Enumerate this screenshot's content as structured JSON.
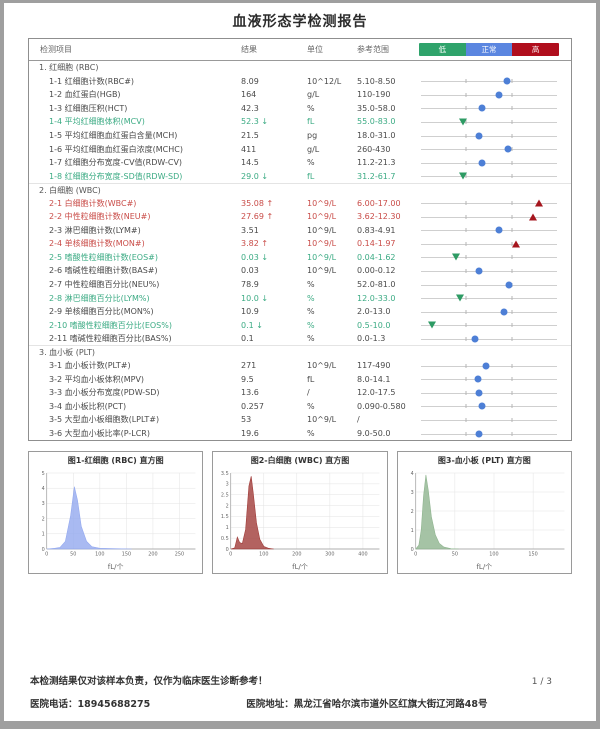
{
  "title": "血液形态学检测报告",
  "table": {
    "headers": {
      "item": "检测项目",
      "result": "结果",
      "unit": "单位",
      "ref": "参考范围"
    },
    "legend": [
      {
        "label": "低",
        "color": "#2fa36b"
      },
      {
        "label": "正常",
        "color": "#5b86e0"
      },
      {
        "label": "高",
        "color": "#b00e1d"
      }
    ],
    "sections": [
      {
        "name": "1. 红细胞 (RBC)",
        "rows": [
          {
            "label": "1-1 红细胞计数(RBC#)",
            "result": "8.09",
            "flag": "",
            "unit": "10^12/L",
            "ref": "5.10-8.50",
            "status": "normal",
            "pos": 63
          },
          {
            "label": "1-2 血红蛋白(HGB)",
            "result": "164",
            "flag": "",
            "unit": "g/L",
            "ref": "110-190",
            "status": "normal",
            "pos": 57
          },
          {
            "label": "1-3 红细胞压积(HCT)",
            "result": "42.3",
            "flag": "",
            "unit": "%",
            "ref": "35.0-58.0",
            "status": "normal",
            "pos": 45
          },
          {
            "label": "1-4 平均红细胞体积(MCV)",
            "result": "52.3",
            "flag": "↓",
            "unit": "fL",
            "ref": "55.0-83.0",
            "status": "low",
            "pos": 31
          },
          {
            "label": "1-5 平均红细胞血红蛋白含量(MCH)",
            "result": "21.5",
            "flag": "",
            "unit": "pg",
            "ref": "18.0-31.0",
            "status": "normal",
            "pos": 43
          },
          {
            "label": "1-6 平均红细胞血红蛋白浓度(MCHC)",
            "result": "411",
            "flag": "",
            "unit": "g/L",
            "ref": "260-430",
            "status": "normal",
            "pos": 64
          },
          {
            "label": "1-7 红细胞分布宽度-CV值(RDW-CV)",
            "result": "14.5",
            "flag": "",
            "unit": "%",
            "ref": "11.2-21.3",
            "status": "normal",
            "pos": 45
          },
          {
            "label": "1-8 红细胞分布宽度-SD值(RDW-SD)",
            "result": "29.0",
            "flag": "↓",
            "unit": "fL",
            "ref": "31.2-61.7",
            "status": "low",
            "pos": 31
          }
        ]
      },
      {
        "name": "2. 白细胞 (WBC)",
        "rows": [
          {
            "label": "2-1 白细胞计数(WBC#)",
            "result": "35.08",
            "flag": "↑",
            "unit": "10^9/L",
            "ref": "6.00-17.00",
            "status": "high",
            "pos": 87
          },
          {
            "label": "2-2 中性粒细胞计数(NEU#)",
            "result": "27.69",
            "flag": "↑",
            "unit": "10^9/L",
            "ref": "3.62-12.30",
            "status": "high",
            "pos": 82
          },
          {
            "label": "2-3 淋巴细胞计数(LYM#)",
            "result": "3.51",
            "flag": "",
            "unit": "10^9/L",
            "ref": "0.83-4.91",
            "status": "normal",
            "pos": 57
          },
          {
            "label": "2-4 单核细胞计数(MON#)",
            "result": "3.82",
            "flag": "↑",
            "unit": "10^9/L",
            "ref": "0.14-1.97",
            "status": "high",
            "pos": 70
          },
          {
            "label": "2-5 嗜酸性粒细胞计数(EOS#)",
            "result": "0.03",
            "flag": "↓",
            "unit": "10^9/L",
            "ref": "0.04-1.62",
            "status": "low",
            "pos": 26
          },
          {
            "label": "2-6 嗜碱性粒细胞计数(BAS#)",
            "result": "0.03",
            "flag": "",
            "unit": "10^9/L",
            "ref": "0.00-0.12",
            "status": "normal",
            "pos": 43
          },
          {
            "label": "2-7 中性粒细胞百分比(NEU%)",
            "result": "78.9",
            "flag": "",
            "unit": "%",
            "ref": "52.0-81.0",
            "status": "normal",
            "pos": 65
          },
          {
            "label": "2-8 淋巴细胞百分比(LYM%)",
            "result": "10.0",
            "flag": "↓",
            "unit": "%",
            "ref": "12.0-33.0",
            "status": "low",
            "pos": 29
          },
          {
            "label": "2-9 单核细胞百分比(MON%)",
            "result": "10.9",
            "flag": "",
            "unit": "%",
            "ref": "2.0-13.0",
            "status": "normal",
            "pos": 61
          },
          {
            "label": "2-10 嗜酸性粒细胞百分比(EOS%)",
            "result": "0.1",
            "flag": "↓",
            "unit": "%",
            "ref": "0.5-10.0",
            "status": "low",
            "pos": 8
          },
          {
            "label": "2-11 嗜碱性粒细胞百分比(BAS%)",
            "result": "0.1",
            "flag": "",
            "unit": "%",
            "ref": "0.0-1.3",
            "status": "normal",
            "pos": 40
          }
        ]
      },
      {
        "name": "3. 血小板 (PLT)",
        "rows": [
          {
            "label": "3-1 血小板计数(PLT#)",
            "result": "271",
            "flag": "",
            "unit": "10^9/L",
            "ref": "117-490",
            "status": "normal",
            "pos": 48
          },
          {
            "label": "3-2 平均血小板体积(MPV)",
            "result": "9.5",
            "flag": "",
            "unit": "fL",
            "ref": "8.0-14.1",
            "status": "normal",
            "pos": 42
          },
          {
            "label": "3-3 血小板分布宽度(PDW-SD)",
            "result": "13.6",
            "flag": "",
            "unit": "/",
            "ref": "12.0-17.5",
            "status": "normal",
            "pos": 43
          },
          {
            "label": "3-4 血小板比积(PCT)",
            "result": "0.257",
            "flag": "",
            "unit": "%",
            "ref": "0.090-0.580",
            "status": "normal",
            "pos": 45
          },
          {
            "label": "3-5 大型血小板细胞数(LPLT#)",
            "result": "53",
            "flag": "",
            "unit": "10^9/L",
            "ref": "/",
            "status": "none",
            "pos": 0
          },
          {
            "label": "3-6 大型血小板比率(P-LCR)",
            "result": "19.6",
            "flag": "",
            "unit": "%",
            "ref": "9.0-50.0",
            "status": "normal",
            "pos": 43
          }
        ]
      }
    ]
  },
  "chart_data": [
    {
      "type": "area",
      "title": "图1-红细胞 (RBC) 直方图",
      "xlabel": "fL/个",
      "color": "#94a9ef",
      "xlim": [
        0,
        280
      ],
      "ylim": [
        0,
        5
      ],
      "xticks": [
        0,
        50,
        100,
        150,
        200,
        250
      ],
      "yticks": [
        0,
        1,
        2,
        3,
        4,
        5
      ],
      "points": [
        [
          0,
          0
        ],
        [
          15,
          0.05
        ],
        [
          25,
          0.1
        ],
        [
          35,
          0.5
        ],
        [
          45,
          2.2
        ],
        [
          52,
          4.1
        ],
        [
          58,
          3.2
        ],
        [
          65,
          1.5
        ],
        [
          75,
          0.5
        ],
        [
          85,
          0.15
        ],
        [
          100,
          0.05
        ],
        [
          130,
          0.02
        ],
        [
          160,
          0
        ]
      ]
    },
    {
      "type": "area",
      "title": "图2-白细胞 (WBC) 直方图",
      "xlabel": "fL/个",
      "color": "#a03b38",
      "xlim": [
        0,
        450
      ],
      "ylim": [
        0,
        3.5
      ],
      "xticks": [
        0,
        100,
        200,
        300,
        400
      ],
      "yticks": [
        0,
        0.5,
        1,
        1.5,
        2,
        2.5,
        3,
        3.5
      ],
      "points": [
        [
          0,
          0
        ],
        [
          12,
          0.05
        ],
        [
          20,
          0.55
        ],
        [
          27,
          0.3
        ],
        [
          35,
          0.25
        ],
        [
          45,
          0.9
        ],
        [
          55,
          2.9
        ],
        [
          62,
          3.35
        ],
        [
          68,
          2.6
        ],
        [
          78,
          1.2
        ],
        [
          88,
          0.45
        ],
        [
          100,
          0.12
        ],
        [
          115,
          0.03
        ],
        [
          130,
          0
        ]
      ]
    },
    {
      "type": "area",
      "title": "图3-血小板 (PLT) 直方图",
      "xlabel": "fL/个",
      "color": "#8fb48f",
      "xlim": [
        0,
        190
      ],
      "ylim": [
        0,
        4
      ],
      "xticks": [
        0,
        50,
        100,
        150
      ],
      "yticks": [
        0,
        1,
        2,
        3,
        4
      ],
      "points": [
        [
          0,
          0
        ],
        [
          4,
          0.2
        ],
        [
          7,
          1.0
        ],
        [
          10,
          2.8
        ],
        [
          13,
          3.9
        ],
        [
          16,
          3.1
        ],
        [
          20,
          1.7
        ],
        [
          25,
          0.75
        ],
        [
          30,
          0.3
        ],
        [
          36,
          0.1
        ],
        [
          45,
          0.02
        ],
        [
          55,
          0
        ]
      ]
    }
  ],
  "footer": {
    "disclaimer": "本检测结果仅对该样本负责，仅作为临床医生诊断参考！",
    "page": "1 / 3",
    "phone_label": "医院电话：",
    "phone": "18945688275",
    "address_label": "医院地址：",
    "address": "黑龙江省哈尔滨市道外区红旗大街辽河路48号"
  }
}
